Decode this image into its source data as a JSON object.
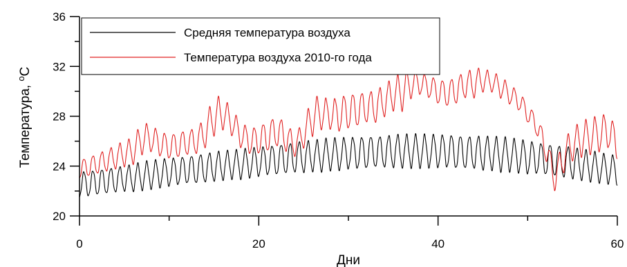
{
  "chart_data": {
    "type": "line",
    "title": "",
    "xlabel": "Дни",
    "ylabel": "Температура, ",
    "ylabel_unit_sup": "o",
    "ylabel_unit": "C",
    "xlim": [
      0,
      60
    ],
    "ylim": [
      20,
      36
    ],
    "x_ticks": [
      0,
      20,
      40,
      60
    ],
    "y_ticks": [
      20,
      24,
      28,
      32,
      36
    ],
    "grid": false,
    "legend_position": "top-left",
    "value_note": "Approximate daily minimum and maximum temperatures read from the plot; the curves oscillate once per day between these values.",
    "days": [
      0,
      1,
      2,
      3,
      4,
      5,
      6,
      7,
      8,
      9,
      10,
      11,
      12,
      13,
      14,
      15,
      16,
      17,
      18,
      19,
      20,
      21,
      22,
      23,
      24,
      25,
      26,
      27,
      28,
      29,
      30,
      31,
      32,
      33,
      34,
      35,
      36,
      37,
      38,
      39,
      40,
      41,
      42,
      43,
      44,
      45,
      46,
      47,
      48,
      49,
      50,
      51,
      52,
      53,
      54,
      55,
      56,
      57,
      58,
      59,
      60
    ],
    "series": [
      {
        "name": "Средняя температура воздуха",
        "color": "#000000",
        "daily_min": [
          21.5,
          21.6,
          21.7,
          21.8,
          21.9,
          22.0,
          22.0,
          22.1,
          22.2,
          22.3,
          22.4,
          22.5,
          22.6,
          22.6,
          22.7,
          22.8,
          22.9,
          23.0,
          23.0,
          23.1,
          23.2,
          23.3,
          23.3,
          23.4,
          23.5,
          23.5,
          23.6,
          23.6,
          23.7,
          23.7,
          23.8,
          23.8,
          23.8,
          23.9,
          23.9,
          23.9,
          23.9,
          23.9,
          23.9,
          23.9,
          23.9,
          23.9,
          23.8,
          23.8,
          23.8,
          23.7,
          23.7,
          23.6,
          23.6,
          23.5,
          23.4,
          23.4,
          23.3,
          23.2,
          23.1,
          23.0,
          22.9,
          22.8,
          22.7,
          22.6,
          22.5
        ],
        "daily_max": [
          23.5,
          23.6,
          23.7,
          23.8,
          23.9,
          24.0,
          24.1,
          24.3,
          24.4,
          24.5,
          24.6,
          24.7,
          24.8,
          24.9,
          25.0,
          25.1,
          25.2,
          25.2,
          25.3,
          25.4,
          25.5,
          25.6,
          25.7,
          25.8,
          25.9,
          26.0,
          26.0,
          26.1,
          26.2,
          26.2,
          26.3,
          26.3,
          26.4,
          26.4,
          26.4,
          26.5,
          26.5,
          26.5,
          26.5,
          26.5,
          26.5,
          26.5,
          26.5,
          26.4,
          26.4,
          26.4,
          26.3,
          26.3,
          26.2,
          26.1,
          26.0,
          25.9,
          25.8,
          25.7,
          25.6,
          25.5,
          25.3,
          25.2,
          25.0,
          24.9,
          24.8
        ]
      },
      {
        "name": "Температура воздуха 2010-го года",
        "color": "#e02020",
        "daily_min": [
          23.0,
          23.2,
          23.4,
          23.6,
          23.8,
          24.0,
          24.2,
          25.0,
          25.2,
          24.8,
          24.6,
          24.7,
          24.9,
          25.0,
          25.5,
          26.5,
          27.0,
          26.5,
          25.5,
          25.0,
          25.0,
          25.2,
          25.6,
          25.2,
          24.8,
          25.5,
          26.5,
          27.0,
          27.0,
          26.8,
          27.0,
          27.2,
          27.5,
          27.5,
          28.0,
          28.5,
          28.5,
          29.5,
          29.8,
          29.5,
          29.0,
          28.8,
          29.0,
          29.5,
          29.5,
          30.0,
          30.0,
          29.5,
          29.0,
          28.5,
          27.5,
          26.5,
          24.5,
          22.0,
          23.5,
          24.5,
          24.8,
          25.0,
          25.2,
          25.5,
          24.5
        ],
        "daily_max": [
          24.5,
          24.7,
          25.0,
          25.3,
          25.6,
          26.0,
          26.2,
          27.5,
          27.2,
          26.8,
          26.5,
          26.7,
          26.9,
          27.0,
          27.8,
          29.5,
          29.5,
          28.5,
          27.5,
          27.0,
          27.2,
          27.6,
          28.0,
          27.5,
          26.5,
          27.5,
          29.5,
          29.5,
          29.3,
          29.5,
          29.8,
          29.8,
          30.0,
          30.0,
          30.5,
          31.0,
          31.5,
          31.8,
          31.5,
          31.2,
          31.0,
          30.8,
          31.2,
          31.5,
          31.8,
          31.8,
          31.5,
          31.2,
          30.5,
          30.0,
          29.0,
          28.0,
          26.5,
          24.0,
          26.0,
          27.0,
          27.5,
          27.8,
          28.0,
          28.2,
          27.0
        ]
      }
    ]
  }
}
